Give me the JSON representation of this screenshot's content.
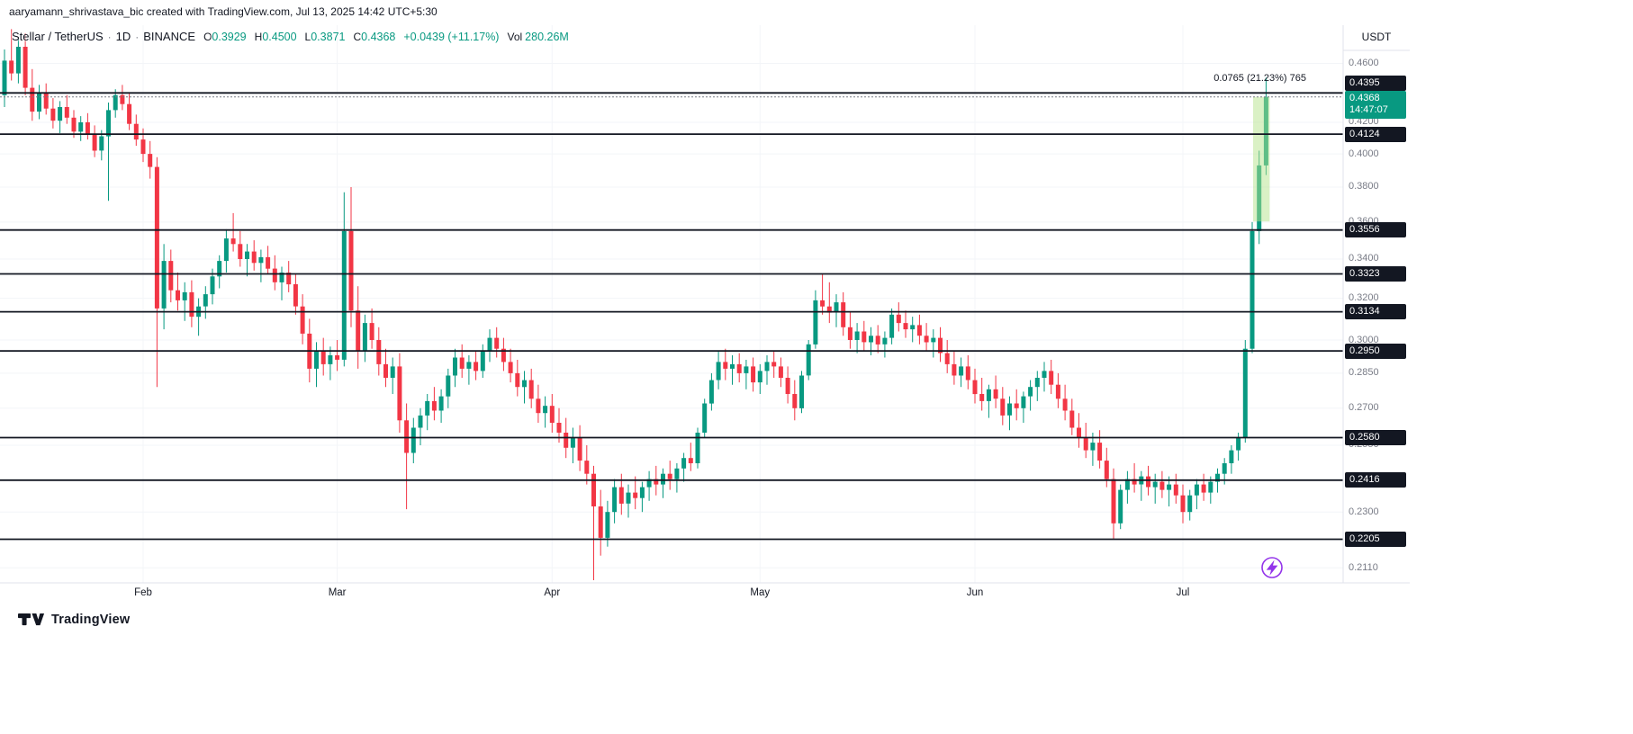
{
  "attribution": "aaryamann_shrivastava_bic created with TradingView.com, Jul 13, 2025 14:42 UTC+5:30",
  "legend": {
    "symbol": "Stellar / TetherUS",
    "sep": "·",
    "interval": "1D",
    "exchange": "BINANCE",
    "open_label": "O",
    "open": "0.3929",
    "high_label": "H",
    "high": "0.4500",
    "low_label": "L",
    "low": "0.3871",
    "close_label": "C",
    "close": "0.4368",
    "change": "+0.0439 (+11.17%)",
    "volume_label": "Vol",
    "volume": "280.26M"
  },
  "price_axis": {
    "currency": "USDT",
    "last_price": "0.4368",
    "countdown": "14:47:07"
  },
  "footer": {
    "brand": "TradingView"
  },
  "colors": {
    "up": "#089981",
    "down": "#F23645",
    "text": "#131722",
    "muted": "#787b86",
    "axis_border": "#e0e3eb",
    "grid": "#f3f5f8",
    "level_line": "#131722",
    "badge_bg": "#131722",
    "last_price_bg": "#089981",
    "measure_fill": "#b5e48c",
    "flash": "#9334ea"
  },
  "chart_data": {
    "type": "candlestick",
    "title": "Stellar / TetherUS · 1D · BINANCE",
    "scale": "log",
    "ylim": [
      0.207,
      0.488
    ],
    "grid_prices": [
      0.46,
      0.42,
      0.4,
      0.38,
      0.36,
      0.34,
      0.32,
      0.3,
      0.285,
      0.27,
      0.255,
      0.23,
      0.211
    ],
    "levels": [
      0.4395,
      0.4124,
      0.3556,
      0.3323,
      0.3134,
      0.295,
      0.258,
      0.2416,
      0.2205
    ],
    "last_price": 0.4368,
    "months": [
      {
        "label": "Feb",
        "index": 20
      },
      {
        "label": "Mar",
        "index": 48
      },
      {
        "label": "Apr",
        "index": 79
      },
      {
        "label": "May",
        "index": 109
      },
      {
        "label": "Jun",
        "index": 140
      },
      {
        "label": "Jul",
        "index": 170
      }
    ],
    "measure": {
      "from_price": 0.3603,
      "to_price": 0.4368,
      "from_index": 180,
      "to_index": 182,
      "label": "0.0765 (21.23%) 765"
    },
    "ohlc_current": {
      "o": 0.3929,
      "h": 0.45,
      "l": 0.3871,
      "c": 0.4368,
      "change": 0.0439,
      "change_pct": 11.17,
      "volume": "280.26M"
    },
    "candles": [
      [
        0.438,
        0.47,
        0.43,
        0.462
      ],
      [
        0.462,
        0.485,
        0.448,
        0.453
      ],
      [
        0.453,
        0.478,
        0.446,
        0.472
      ],
      [
        0.472,
        0.482,
        0.438,
        0.443
      ],
      [
        0.443,
        0.456,
        0.421,
        0.427
      ],
      [
        0.427,
        0.445,
        0.422,
        0.44
      ],
      [
        0.44,
        0.446,
        0.425,
        0.429
      ],
      [
        0.429,
        0.436,
        0.416,
        0.421
      ],
      [
        0.421,
        0.434,
        0.413,
        0.43
      ],
      [
        0.43,
        0.438,
        0.419,
        0.423
      ],
      [
        0.423,
        0.428,
        0.41,
        0.414
      ],
      [
        0.414,
        0.424,
        0.408,
        0.42
      ],
      [
        0.42,
        0.426,
        0.409,
        0.412
      ],
      [
        0.412,
        0.418,
        0.398,
        0.402
      ],
      [
        0.402,
        0.415,
        0.396,
        0.411
      ],
      [
        0.411,
        0.433,
        0.372,
        0.428
      ],
      [
        0.428,
        0.442,
        0.423,
        0.438
      ],
      [
        0.438,
        0.445,
        0.428,
        0.432
      ],
      [
        0.432,
        0.439,
        0.415,
        0.419
      ],
      [
        0.419,
        0.425,
        0.405,
        0.409
      ],
      [
        0.409,
        0.416,
        0.395,
        0.4
      ],
      [
        0.4,
        0.408,
        0.385,
        0.392
      ],
      [
        0.392,
        0.398,
        0.279,
        0.315
      ],
      [
        0.315,
        0.348,
        0.305,
        0.339
      ],
      [
        0.339,
        0.345,
        0.318,
        0.324
      ],
      [
        0.324,
        0.333,
        0.314,
        0.319
      ],
      [
        0.319,
        0.328,
        0.309,
        0.323
      ],
      [
        0.323,
        0.329,
        0.306,
        0.311
      ],
      [
        0.311,
        0.32,
        0.302,
        0.316
      ],
      [
        0.316,
        0.326,
        0.31,
        0.322
      ],
      [
        0.322,
        0.335,
        0.317,
        0.331
      ],
      [
        0.331,
        0.342,
        0.325,
        0.339
      ],
      [
        0.339,
        0.356,
        0.333,
        0.351
      ],
      [
        0.351,
        0.365,
        0.344,
        0.348
      ],
      [
        0.348,
        0.355,
        0.336,
        0.34
      ],
      [
        0.34,
        0.348,
        0.331,
        0.344
      ],
      [
        0.344,
        0.35,
        0.334,
        0.338
      ],
      [
        0.338,
        0.345,
        0.328,
        0.341
      ],
      [
        0.341,
        0.347,
        0.332,
        0.335
      ],
      [
        0.335,
        0.342,
        0.324,
        0.328
      ],
      [
        0.328,
        0.336,
        0.319,
        0.333
      ],
      [
        0.333,
        0.339,
        0.323,
        0.327
      ],
      [
        0.327,
        0.332,
        0.312,
        0.316
      ],
      [
        0.316,
        0.322,
        0.298,
        0.303
      ],
      [
        0.303,
        0.31,
        0.281,
        0.287
      ],
      [
        0.287,
        0.299,
        0.279,
        0.295
      ],
      [
        0.295,
        0.301,
        0.284,
        0.289
      ],
      [
        0.289,
        0.297,
        0.282,
        0.293
      ],
      [
        0.293,
        0.3,
        0.286,
        0.291
      ],
      [
        0.291,
        0.377,
        0.288,
        0.355
      ],
      [
        0.355,
        0.38,
        0.306,
        0.314
      ],
      [
        0.314,
        0.326,
        0.287,
        0.295
      ],
      [
        0.295,
        0.312,
        0.29,
        0.308
      ],
      [
        0.308,
        0.315,
        0.296,
        0.3
      ],
      [
        0.3,
        0.306,
        0.284,
        0.289
      ],
      [
        0.289,
        0.296,
        0.279,
        0.283
      ],
      [
        0.283,
        0.292,
        0.276,
        0.288
      ],
      [
        0.288,
        0.294,
        0.26,
        0.265
      ],
      [
        0.265,
        0.272,
        0.231,
        0.252
      ],
      [
        0.252,
        0.266,
        0.248,
        0.262
      ],
      [
        0.262,
        0.27,
        0.255,
        0.267
      ],
      [
        0.267,
        0.276,
        0.261,
        0.273
      ],
      [
        0.273,
        0.279,
        0.265,
        0.269
      ],
      [
        0.269,
        0.278,
        0.264,
        0.275
      ],
      [
        0.275,
        0.287,
        0.27,
        0.284
      ],
      [
        0.284,
        0.296,
        0.279,
        0.292
      ],
      [
        0.292,
        0.298,
        0.283,
        0.287
      ],
      [
        0.287,
        0.293,
        0.28,
        0.29
      ],
      [
        0.29,
        0.295,
        0.282,
        0.286
      ],
      [
        0.286,
        0.298,
        0.283,
        0.295
      ],
      [
        0.295,
        0.305,
        0.29,
        0.301
      ],
      [
        0.301,
        0.306,
        0.292,
        0.296
      ],
      [
        0.296,
        0.301,
        0.286,
        0.29
      ],
      [
        0.29,
        0.296,
        0.281,
        0.285
      ],
      [
        0.285,
        0.291,
        0.275,
        0.279
      ],
      [
        0.279,
        0.286,
        0.272,
        0.282
      ],
      [
        0.282,
        0.287,
        0.27,
        0.274
      ],
      [
        0.274,
        0.28,
        0.264,
        0.268
      ],
      [
        0.268,
        0.275,
        0.262,
        0.271
      ],
      [
        0.271,
        0.276,
        0.26,
        0.264
      ],
      [
        0.264,
        0.27,
        0.256,
        0.26
      ],
      [
        0.26,
        0.266,
        0.25,
        0.254
      ],
      [
        0.254,
        0.262,
        0.248,
        0.258
      ],
      [
        0.258,
        0.263,
        0.245,
        0.249
      ],
      [
        0.249,
        0.255,
        0.24,
        0.244
      ],
      [
        0.244,
        0.247,
        0.207,
        0.232
      ],
      [
        0.232,
        0.238,
        0.215,
        0.221
      ],
      [
        0.221,
        0.234,
        0.218,
        0.23
      ],
      [
        0.23,
        0.242,
        0.226,
        0.239
      ],
      [
        0.239,
        0.244,
        0.229,
        0.233
      ],
      [
        0.233,
        0.24,
        0.228,
        0.237
      ],
      [
        0.237,
        0.243,
        0.231,
        0.235
      ],
      [
        0.235,
        0.241,
        0.23,
        0.239
      ],
      [
        0.239,
        0.245,
        0.234,
        0.242
      ],
      [
        0.242,
        0.247,
        0.236,
        0.24
      ],
      [
        0.24,
        0.246,
        0.235,
        0.244
      ],
      [
        0.244,
        0.249,
        0.238,
        0.242
      ],
      [
        0.242,
        0.248,
        0.237,
        0.246
      ],
      [
        0.246,
        0.252,
        0.241,
        0.25
      ],
      [
        0.25,
        0.256,
        0.245,
        0.248
      ],
      [
        0.248,
        0.262,
        0.246,
        0.26
      ],
      [
        0.26,
        0.274,
        0.258,
        0.272
      ],
      [
        0.272,
        0.285,
        0.269,
        0.282
      ],
      [
        0.282,
        0.295,
        0.278,
        0.29
      ],
      [
        0.29,
        0.296,
        0.282,
        0.287
      ],
      [
        0.287,
        0.293,
        0.28,
        0.289
      ],
      [
        0.289,
        0.294,
        0.281,
        0.285
      ],
      [
        0.285,
        0.291,
        0.278,
        0.288
      ],
      [
        0.288,
        0.292,
        0.277,
        0.281
      ],
      [
        0.281,
        0.289,
        0.276,
        0.286
      ],
      [
        0.286,
        0.293,
        0.28,
        0.29
      ],
      [
        0.29,
        0.295,
        0.283,
        0.288
      ],
      [
        0.288,
        0.292,
        0.279,
        0.283
      ],
      [
        0.283,
        0.288,
        0.272,
        0.276
      ],
      [
        0.276,
        0.282,
        0.265,
        0.27
      ],
      [
        0.27,
        0.286,
        0.268,
        0.284
      ],
      [
        0.284,
        0.3,
        0.282,
        0.298
      ],
      [
        0.298,
        0.324,
        0.296,
        0.319
      ],
      [
        0.319,
        0.332,
        0.312,
        0.316
      ],
      [
        0.316,
        0.328,
        0.308,
        0.313
      ],
      [
        0.313,
        0.322,
        0.306,
        0.318
      ],
      [
        0.318,
        0.323,
        0.302,
        0.306
      ],
      [
        0.306,
        0.313,
        0.296,
        0.3
      ],
      [
        0.3,
        0.308,
        0.294,
        0.304
      ],
      [
        0.304,
        0.309,
        0.295,
        0.299
      ],
      [
        0.299,
        0.306,
        0.293,
        0.302
      ],
      [
        0.302,
        0.307,
        0.294,
        0.298
      ],
      [
        0.298,
        0.304,
        0.292,
        0.301
      ],
      [
        0.301,
        0.315,
        0.298,
        0.312
      ],
      [
        0.312,
        0.318,
        0.304,
        0.308
      ],
      [
        0.308,
        0.314,
        0.301,
        0.305
      ],
      [
        0.305,
        0.311,
        0.299,
        0.307
      ],
      [
        0.307,
        0.312,
        0.298,
        0.302
      ],
      [
        0.302,
        0.308,
        0.295,
        0.299
      ],
      [
        0.299,
        0.305,
        0.292,
        0.301
      ],
      [
        0.301,
        0.306,
        0.29,
        0.294
      ],
      [
        0.294,
        0.3,
        0.285,
        0.289
      ],
      [
        0.289,
        0.295,
        0.28,
        0.284
      ],
      [
        0.284,
        0.292,
        0.279,
        0.288
      ],
      [
        0.288,
        0.293,
        0.278,
        0.282
      ],
      [
        0.282,
        0.287,
        0.272,
        0.276
      ],
      [
        0.276,
        0.283,
        0.269,
        0.273
      ],
      [
        0.273,
        0.28,
        0.266,
        0.278
      ],
      [
        0.278,
        0.284,
        0.27,
        0.274
      ],
      [
        0.274,
        0.279,
        0.263,
        0.267
      ],
      [
        0.267,
        0.275,
        0.261,
        0.272
      ],
      [
        0.272,
        0.278,
        0.265,
        0.27
      ],
      [
        0.27,
        0.277,
        0.264,
        0.275
      ],
      [
        0.275,
        0.282,
        0.269,
        0.279
      ],
      [
        0.279,
        0.286,
        0.273,
        0.283
      ],
      [
        0.283,
        0.29,
        0.277,
        0.286
      ],
      [
        0.286,
        0.291,
        0.276,
        0.28
      ],
      [
        0.28,
        0.285,
        0.27,
        0.274
      ],
      [
        0.274,
        0.28,
        0.265,
        0.269
      ],
      [
        0.269,
        0.274,
        0.259,
        0.262
      ],
      [
        0.262,
        0.268,
        0.254,
        0.258
      ],
      [
        0.258,
        0.264,
        0.25,
        0.253
      ],
      [
        0.253,
        0.26,
        0.247,
        0.256
      ],
      [
        0.256,
        0.261,
        0.246,
        0.249
      ],
      [
        0.249,
        0.254,
        0.239,
        0.242
      ],
      [
        0.242,
        0.246,
        0.2205,
        0.226
      ],
      [
        0.226,
        0.24,
        0.224,
        0.238
      ],
      [
        0.238,
        0.245,
        0.233,
        0.242
      ],
      [
        0.242,
        0.248,
        0.237,
        0.24
      ],
      [
        0.24,
        0.245,
        0.234,
        0.243
      ],
      [
        0.243,
        0.247,
        0.236,
        0.239
      ],
      [
        0.239,
        0.244,
        0.233,
        0.241
      ],
      [
        0.241,
        0.245,
        0.235,
        0.238
      ],
      [
        0.238,
        0.243,
        0.232,
        0.24
      ],
      [
        0.24,
        0.244,
        0.233,
        0.236
      ],
      [
        0.236,
        0.24,
        0.226,
        0.23
      ],
      [
        0.23,
        0.238,
        0.227,
        0.236
      ],
      [
        0.236,
        0.242,
        0.231,
        0.24
      ],
      [
        0.24,
        0.244,
        0.234,
        0.237
      ],
      [
        0.237,
        0.243,
        0.233,
        0.241
      ],
      [
        0.241,
        0.246,
        0.237,
        0.244
      ],
      [
        0.244,
        0.25,
        0.24,
        0.248
      ],
      [
        0.248,
        0.255,
        0.244,
        0.253
      ],
      [
        0.253,
        0.26,
        0.249,
        0.258
      ],
      [
        0.258,
        0.3,
        0.256,
        0.296
      ],
      [
        0.296,
        0.36,
        0.294,
        0.355
      ],
      [
        0.355,
        0.402,
        0.348,
        0.3929
      ],
      [
        0.3929,
        0.45,
        0.3871,
        0.4368
      ]
    ]
  }
}
